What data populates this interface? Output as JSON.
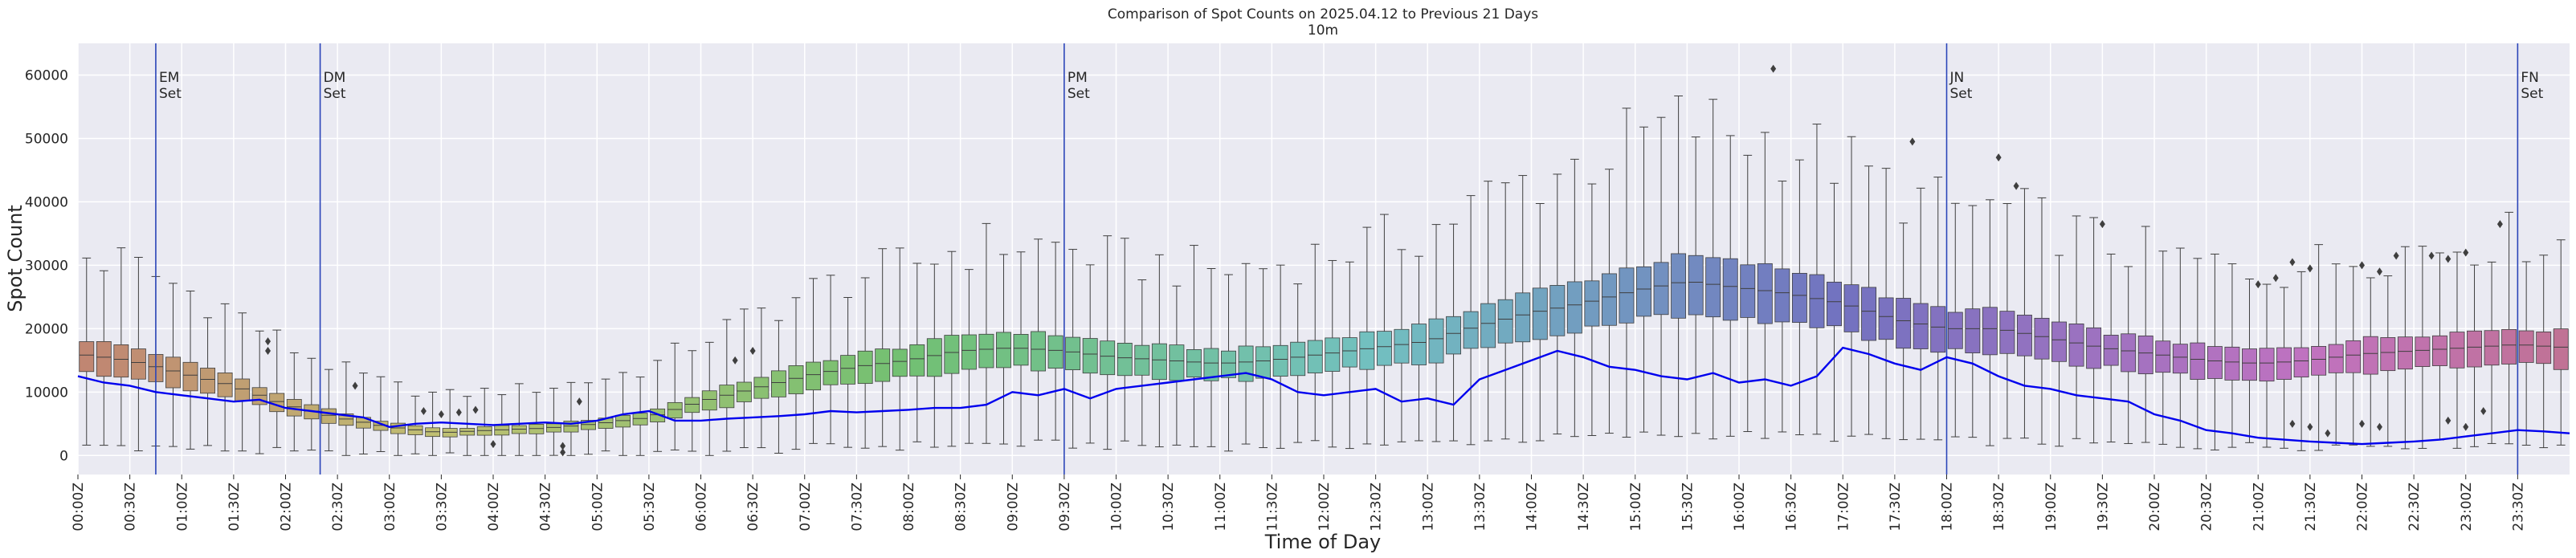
{
  "chart_data": {
    "type": "box",
    "title": "Comparison of Spot Counts on 2025.04.12 to Previous 21 Days",
    "subtitle": "10m",
    "xlabel": "Time of Day",
    "ylabel": "Spot Count",
    "ylim": [
      -3000,
      65000
    ],
    "yticks": [
      0,
      10000,
      20000,
      30000,
      40000,
      50000,
      60000
    ],
    "xticks": [
      "00:00Z",
      "00:30Z",
      "01:00Z",
      "01:30Z",
      "02:00Z",
      "02:30Z",
      "03:00Z",
      "03:30Z",
      "04:00Z",
      "04:30Z",
      "05:00Z",
      "05:30Z",
      "06:00Z",
      "06:30Z",
      "07:00Z",
      "07:30Z",
      "08:00Z",
      "08:30Z",
      "09:00Z",
      "09:30Z",
      "10:00Z",
      "10:30Z",
      "11:00Z",
      "11:30Z",
      "12:00Z",
      "12:30Z",
      "13:00Z",
      "13:30Z",
      "14:00Z",
      "14:30Z",
      "15:00Z",
      "15:30Z",
      "16:00Z",
      "16:30Z",
      "17:00Z",
      "17:30Z",
      "18:00Z",
      "18:30Z",
      "19:00Z",
      "19:30Z",
      "20:00Z",
      "20:30Z",
      "21:00Z",
      "21:30Z",
      "22:00Z",
      "22:30Z",
      "23:00Z",
      "23:30Z"
    ],
    "bins_per_hour": 6,
    "n_bins": 144,
    "median_profile": {
      "hours": [
        0,
        0.5,
        1,
        1.5,
        2,
        2.5,
        3,
        3.5,
        4,
        4.5,
        5,
        5.5,
        6,
        6.5,
        7,
        7.5,
        8,
        8.5,
        9,
        9.5,
        10,
        10.5,
        11,
        11.5,
        12,
        12.5,
        13,
        13.5,
        14,
        14.5,
        15,
        15.5,
        16,
        16.5,
        17,
        17.5,
        18,
        18.5,
        19,
        19.5,
        20,
        20.5,
        21,
        21.5,
        22,
        22.5,
        23,
        23.5,
        24
      ],
      "values": [
        16000,
        15000,
        13000,
        11000,
        8000,
        6000,
        4500,
        3600,
        4000,
        4300,
        5000,
        6000,
        8500,
        10500,
        12500,
        14000,
        15000,
        16500,
        17000,
        16500,
        15500,
        15000,
        14500,
        15000,
        16000,
        17000,
        18000,
        20500,
        22500,
        24000,
        26000,
        27500,
        26500,
        25500,
        24000,
        21500,
        20000,
        20000,
        18500,
        17000,
        16000,
        15000,
        14500,
        15000,
        16000,
        16500,
        17000,
        17500,
        17000
      ]
    },
    "current_day_series": {
      "name": "2025.04.12",
      "color": "#0000ee",
      "hours": [
        0,
        0.25,
        0.5,
        0.75,
        1,
        1.25,
        1.5,
        1.75,
        2,
        2.25,
        2.5,
        2.75,
        3,
        3.25,
        3.5,
        3.75,
        4,
        4.25,
        4.5,
        4.75,
        5,
        5.25,
        5.5,
        5.75,
        6,
        6.25,
        6.5,
        6.75,
        7,
        7.25,
        7.5,
        7.75,
        8,
        8.25,
        8.5,
        8.75,
        9,
        9.25,
        9.5,
        9.75,
        10,
        10.25,
        10.5,
        10.75,
        11,
        11.25,
        11.5,
        11.75,
        12,
        12.25,
        12.5,
        12.75,
        13,
        13.25,
        13.5,
        13.75,
        14,
        14.25,
        14.5,
        14.75,
        15,
        15.25,
        15.5,
        15.75,
        16,
        16.25,
        16.5,
        16.75,
        17,
        17.25,
        17.5,
        17.75,
        18,
        18.25,
        18.5,
        18.75,
        19,
        19.25,
        19.5,
        19.75,
        20,
        20.25,
        20.5,
        20.75,
        21,
        21.25,
        21.5,
        21.75,
        22,
        22.25,
        22.5,
        22.75,
        23,
        23.25,
        23.5,
        23.75,
        24
      ],
      "values": [
        12500,
        11500,
        11000,
        10000,
        9500,
        9000,
        8500,
        8800,
        7500,
        7000,
        6500,
        6000,
        4500,
        5000,
        5200,
        5000,
        4800,
        5000,
        5200,
        5000,
        5500,
        6500,
        7000,
        5500,
        5500,
        5800,
        6000,
        6200,
        6500,
        7000,
        6800,
        7000,
        7200,
        7500,
        7500,
        8000,
        10000,
        9500,
        10500,
        9000,
        10500,
        11000,
        11500,
        12000,
        12500,
        13000,
        12000,
        10000,
        9500,
        10000,
        10500,
        8500,
        9000,
        8000,
        12000,
        13500,
        15000,
        16500,
        15500,
        14000,
        13500,
        12500,
        12000,
        13000,
        11500,
        12000,
        11000,
        12500,
        17000,
        16000,
        14500,
        13500,
        15500,
        14500,
        12500,
        11000,
        10500,
        9500,
        9000,
        8500,
        6500,
        5500,
        4000,
        3500,
        2800,
        2500,
        2200,
        2000,
        1800,
        2000,
        2200,
        2500,
        3000,
        3500,
        4000,
        3800,
        3500
      ]
    },
    "vertical_markers": [
      {
        "hour": 0.75,
        "line1": "EM",
        "line2": "Set"
      },
      {
        "hour": 2.3333,
        "line1": "DM",
        "line2": "Set"
      },
      {
        "hour": 9.5,
        "line1": "PM",
        "line2": "Set"
      },
      {
        "hour": 18.0,
        "line1": "JN",
        "line2": "Set"
      },
      {
        "hour": 23.5,
        "line1": "FN",
        "line2": "Set"
      }
    ],
    "outlier_points": [
      {
        "hour": 1.83,
        "value": 18000
      },
      {
        "hour": 1.83,
        "value": 16500
      },
      {
        "hour": 2.67,
        "value": 11000
      },
      {
        "hour": 3.33,
        "value": 7000
      },
      {
        "hour": 3.5,
        "value": 6500
      },
      {
        "hour": 3.67,
        "value": 6800
      },
      {
        "hour": 3.83,
        "value": 7200
      },
      {
        "hour": 4.0,
        "value": 1800
      },
      {
        "hour": 4.67,
        "value": 1500
      },
      {
        "hour": 4.67,
        "value": 500
      },
      {
        "hour": 4.83,
        "value": 8500
      },
      {
        "hour": 6.33,
        "value": 15000
      },
      {
        "hour": 6.5,
        "value": 16500
      },
      {
        "hour": 16.33,
        "value": 61000
      },
      {
        "hour": 17.67,
        "value": 49500
      },
      {
        "hour": 18.5,
        "value": 47000
      },
      {
        "hour": 18.67,
        "value": 42500
      },
      {
        "hour": 19.5,
        "value": 36500
      },
      {
        "hour": 21.0,
        "value": 27000
      },
      {
        "hour": 21.17,
        "value": 28000
      },
      {
        "hour": 21.33,
        "value": 30500
      },
      {
        "hour": 21.5,
        "value": 29500
      },
      {
        "hour": 21.33,
        "value": 5000
      },
      {
        "hour": 21.5,
        "value": 4500
      },
      {
        "hour": 21.67,
        "value": 3500
      },
      {
        "hour": 22.0,
        "value": 30000
      },
      {
        "hour": 22.17,
        "value": 29000
      },
      {
        "hour": 22.33,
        "value": 31500
      },
      {
        "hour": 22.0,
        "value": 5000
      },
      {
        "hour": 22.17,
        "value": 4500
      },
      {
        "hour": 22.67,
        "value": 31500
      },
      {
        "hour": 22.83,
        "value": 31000
      },
      {
        "hour": 23.0,
        "value": 32000
      },
      {
        "hour": 22.83,
        "value": 5500
      },
      {
        "hour": 23.0,
        "value": 4500
      },
      {
        "hour": 23.33,
        "value": 36500
      },
      {
        "hour": 23.17,
        "value": 7000
      }
    ],
    "palette_note": "husl-like hue gradient from salmon through olive, green, teal, blue, lavender to pink"
  }
}
